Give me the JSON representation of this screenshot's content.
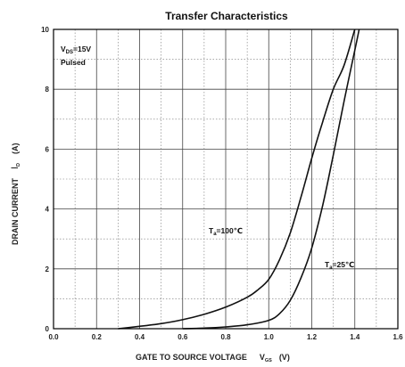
{
  "chart_data": {
    "type": "line",
    "title": "Transfer Characteristics",
    "xlabel": {
      "main": "GATE TO SOURCE VOLTAGE",
      "symbol": "V",
      "subscript": "GS",
      "unit": "(V)"
    },
    "ylabel": {
      "main": "DRAIN CURRENT",
      "symbol": "I",
      "subscript": "D",
      "unit": "(A)"
    },
    "xlim": [
      0.0,
      1.6
    ],
    "ylim": [
      0,
      10
    ],
    "x_ticks": [
      "0.0",
      "0.2",
      "0.4",
      "0.6",
      "0.8",
      "1.0",
      "1.2",
      "1.4",
      "1.6"
    ],
    "y_ticks": [
      "0",
      "2",
      "4",
      "6",
      "8",
      "10"
    ],
    "grid": true,
    "conditions": {
      "line1": "V",
      "line1_sub": "DS",
      "line1_rest": "=15V",
      "line2": "Pulsed"
    },
    "series": [
      {
        "name": "T_a=100℃",
        "label": {
          "prefix": "T",
          "sub": "a",
          "rest": "=100℃"
        },
        "points": [
          [
            0.3,
            0.0
          ],
          [
            0.4,
            0.08
          ],
          [
            0.5,
            0.17
          ],
          [
            0.6,
            0.3
          ],
          [
            0.7,
            0.48
          ],
          [
            0.8,
            0.72
          ],
          [
            0.9,
            1.05
          ],
          [
            0.95,
            1.3
          ],
          [
            1.0,
            1.65
          ],
          [
            1.05,
            2.3
          ],
          [
            1.1,
            3.2
          ],
          [
            1.15,
            4.4
          ],
          [
            1.2,
            5.7
          ],
          [
            1.25,
            6.9
          ],
          [
            1.3,
            8.0
          ],
          [
            1.35,
            8.8
          ],
          [
            1.4,
            10.0
          ]
        ]
      },
      {
        "name": "T_a=25℃",
        "label": {
          "prefix": "T",
          "sub": "a",
          "rest": "=25℃"
        },
        "points": [
          [
            0.6,
            0.0
          ],
          [
            0.7,
            0.02
          ],
          [
            0.8,
            0.06
          ],
          [
            0.9,
            0.13
          ],
          [
            1.0,
            0.28
          ],
          [
            1.05,
            0.5
          ],
          [
            1.1,
            0.95
          ],
          [
            1.15,
            1.7
          ],
          [
            1.2,
            2.7
          ],
          [
            1.25,
            4.1
          ],
          [
            1.3,
            5.8
          ],
          [
            1.35,
            7.6
          ],
          [
            1.4,
            9.3
          ],
          [
            1.42,
            10.0
          ]
        ]
      }
    ]
  }
}
